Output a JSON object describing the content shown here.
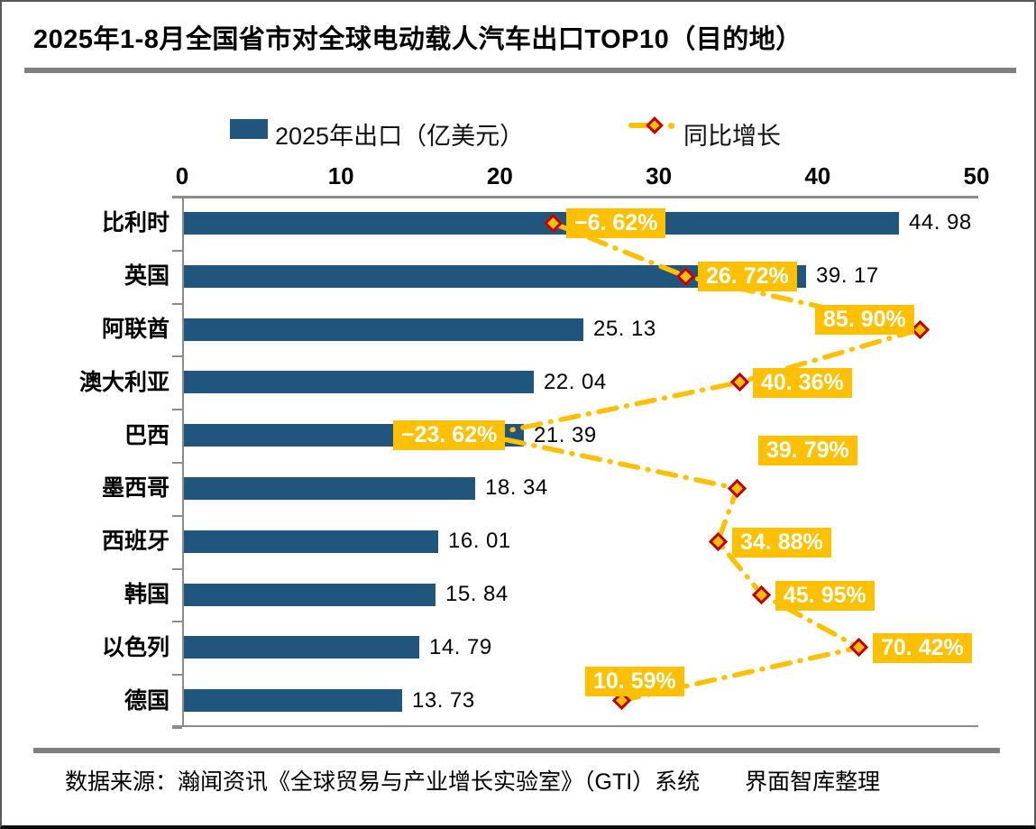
{
  "page": {
    "title": "2025年1-8月全国省市对全球电动载人汽车出口TOP10（目的地）",
    "footer": "数据来源：瀚闻资讯《全球贸易与产业增长实验室》（GTI）系统　　界面智库整理"
  },
  "legend": {
    "bar_label": "2025年出口（亿美元）",
    "line_label": "同比增长"
  },
  "colors": {
    "bar": "#20567D",
    "gold": "#FFC000",
    "diamond_border": "#C00000",
    "axis": "#8C8C8C",
    "separator": "#808080",
    "text": "#000000",
    "label_text": "#FFFFFF"
  },
  "chart_data": {
    "type": "bar",
    "subtype": "horizontal-bar-with-line-markers",
    "title": "2025年1-8月全国省市对全球电动载人汽车出口TOP10（目的地）",
    "categories": [
      "比利时",
      "英国",
      "阿联酋",
      "澳大利亚",
      "巴西",
      "墨西哥",
      "西班牙",
      "韩国",
      "以色列",
      "德国"
    ],
    "series": [
      {
        "name": "2025年出口（亿美元）",
        "type": "bar",
        "values": [
          44.98,
          39.17,
          25.13,
          22.04,
          21.39,
          18.34,
          16.01,
          15.84,
          14.79,
          13.73
        ],
        "xlim": [
          0,
          50
        ]
      },
      {
        "name": "同比增长",
        "type": "line",
        "unit": "%",
        "values": [
          -6.62,
          26.72,
          85.9,
          40.36,
          -23.62,
          39.79,
          34.88,
          45.95,
          70.42,
          10.59
        ],
        "xlim": [
          -100,
          100
        ],
        "label_offsets": [
          [
            15,
            -16
          ],
          [
            14,
            -16
          ],
          [
            -117,
            -27
          ],
          [
            15,
            -16
          ],
          [
            -102,
            -17
          ],
          [
            23,
            -58
          ],
          [
            16,
            -15
          ],
          [
            15,
            -15
          ],
          [
            15,
            -16
          ],
          [
            -40,
            -38
          ]
        ]
      }
    ],
    "x_ticks": [
      0,
      10,
      20,
      30,
      40,
      50
    ],
    "xlabel": "",
    "ylabel": "",
    "grid": false,
    "legend_position": "top",
    "x_axis_position": "top"
  }
}
